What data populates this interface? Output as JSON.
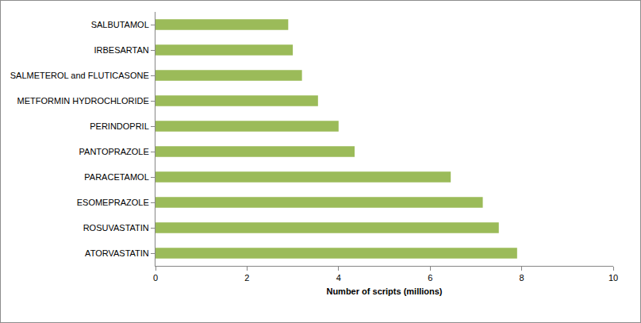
{
  "chart_data": {
    "type": "bar",
    "orientation": "horizontal",
    "categories": [
      "ATORVASTATIN",
      "ROSUVASTATIN",
      "ESOMEPRAZOLE",
      "PARACETAMOL",
      "PANTOPRAZOLE",
      "PERINDOPRIL",
      "METFORMIN HYDROCHLORIDE",
      "SALMETEROL and FLUTICASONE",
      "IRBESARTAN",
      "SALBUTAMOL"
    ],
    "values": [
      7.9,
      7.5,
      7.15,
      6.45,
      4.35,
      4.0,
      3.55,
      3.2,
      3.0,
      2.9
    ],
    "color": "#9bbb59",
    "xlabel": "Number of scripts (millions)",
    "xlim": [
      0,
      10
    ],
    "xticks": [
      0,
      2,
      4,
      6,
      8,
      10
    ],
    "grid": false
  }
}
